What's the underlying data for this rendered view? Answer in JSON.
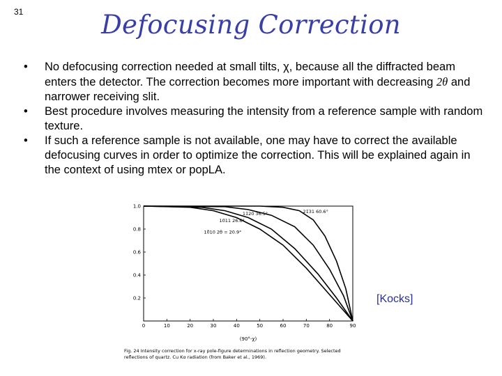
{
  "slide": {
    "number": "31",
    "title": "Defocusing Correction",
    "bullets": [
      {
        "marker": "•",
        "pre": "No defocusing correction needed at small tilts, ",
        "sym": "χ",
        "post": ", because all the diffracted beam enters the detector.  The correction becomes more important with decreasing "
      },
      {
        "marker": "•",
        "text": "Best procedure involves measuring the intensity from a reference sample with random texture."
      },
      {
        "marker": "•",
        "text": "If such a reference sample is not available, one may have to correct the available defocusing curves in order to optimize the correction.  This will be explained again in the context of using mtex or popLA."
      }
    ],
    "bullet1_angle": "2θ",
    "bullet1_tail": " and narrower receiving slit.",
    "citation": "[Kocks]"
  },
  "chart_data": {
    "type": "line",
    "xlabel": "(90°-χ)",
    "ylabel": "",
    "xlim": [
      0,
      90
    ],
    "ylim": [
      0,
      1.0
    ],
    "x_ticks": [
      "0",
      "10",
      "20",
      "30",
      "40",
      "50",
      "60",
      "70",
      "80",
      "90"
    ],
    "y_ticks": [
      "0.2",
      "0.4",
      "0.6",
      "0.8",
      "1.0"
    ],
    "series": [
      {
        "name": "10̄10  2θ = 20.9°",
        "points": [
          [
            0,
            1.0
          ],
          [
            20,
            0.99
          ],
          [
            30,
            0.96
          ],
          [
            40,
            0.9
          ],
          [
            50,
            0.8
          ],
          [
            60,
            0.66
          ],
          [
            70,
            0.46
          ],
          [
            80,
            0.23
          ],
          [
            90,
            0.0
          ]
        ]
      },
      {
        "name": "10̄11 26.6°",
        "points": [
          [
            0,
            1.0
          ],
          [
            25,
            0.99
          ],
          [
            35,
            0.96
          ],
          [
            45,
            0.9
          ],
          [
            55,
            0.8
          ],
          [
            65,
            0.63
          ],
          [
            75,
            0.41
          ],
          [
            83,
            0.2
          ],
          [
            90,
            0.0
          ]
        ]
      },
      {
        "name": "11̄20 36.5°",
        "points": [
          [
            0,
            1.0
          ],
          [
            35,
            0.995
          ],
          [
            45,
            0.97
          ],
          [
            55,
            0.92
          ],
          [
            65,
            0.82
          ],
          [
            73,
            0.66
          ],
          [
            80,
            0.45
          ],
          [
            86,
            0.22
          ],
          [
            90,
            0.0
          ]
        ]
      },
      {
        "name": "21̄31 60.6°",
        "points": [
          [
            0,
            1.0
          ],
          [
            50,
            1.0
          ],
          [
            60,
            0.99
          ],
          [
            67,
            0.96
          ],
          [
            73,
            0.88
          ],
          [
            78,
            0.74
          ],
          [
            83,
            0.52
          ],
          [
            87,
            0.28
          ],
          [
            90,
            0.0
          ]
        ]
      }
    ],
    "caption": "Fig. 24   Intensity correction for x-ray pole-figure determinations in reflection geometry. Selected reflections of quartz.  Cu Kα radiation (from Baker et al., 1969)."
  }
}
